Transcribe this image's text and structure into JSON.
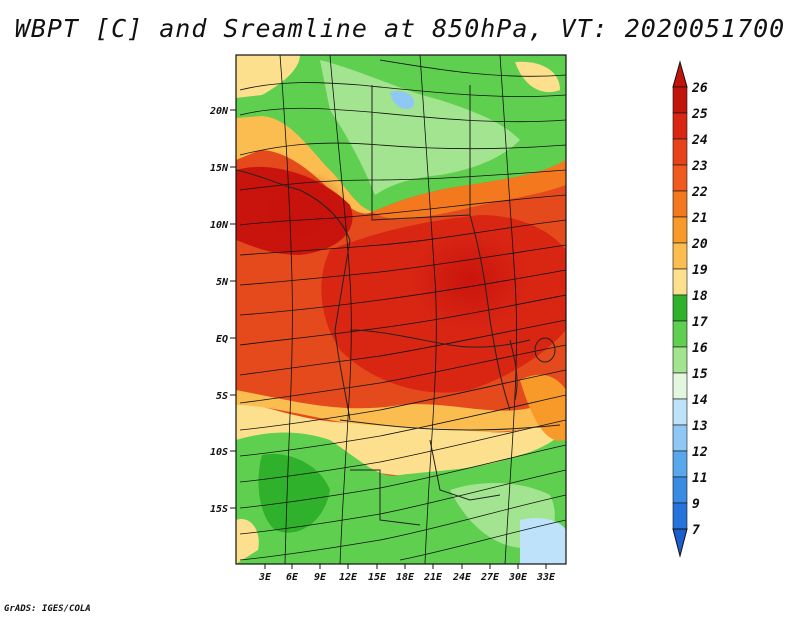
{
  "title": "WBPT [C] and Sreamline at 850hPa, VT: 2020051700",
  "credit": "GrADS: IGES/COLA",
  "map": {
    "lat_labels": [
      "20N",
      "15N",
      "10N",
      "5N",
      "EQ",
      "5S",
      "10S",
      "15S"
    ],
    "lon_labels": [
      "3E",
      "6E",
      "9E",
      "12E",
      "15E",
      "18E",
      "21E",
      "24E",
      "27E",
      "30E",
      "33E"
    ]
  },
  "colorbar": {
    "labels": [
      "26",
      "25",
      "24",
      "23",
      "22",
      "21",
      "20",
      "19",
      "18",
      "17",
      "16",
      "15",
      "14",
      "13",
      "12",
      "11",
      "9",
      "7"
    ],
    "colors": [
      "#c0140c",
      "#d92613",
      "#e8421a",
      "#f05a1e",
      "#f4781e",
      "#f89a2a",
      "#fbbd4f",
      "#fce08d",
      "#2fb12b",
      "#5fcf4f",
      "#a2e48f",
      "#e3f7df",
      "#bde2fa",
      "#8fc8f4",
      "#5aa8ec",
      "#3a8be4",
      "#2673dc",
      "#1a5ed0"
    ]
  }
}
